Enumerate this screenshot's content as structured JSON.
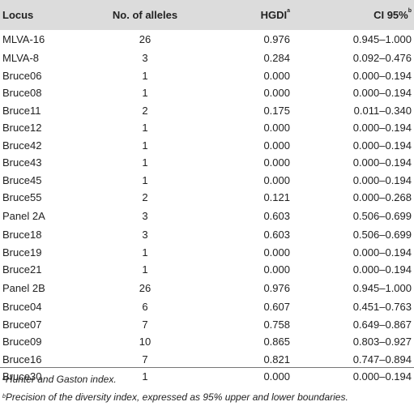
{
  "table": {
    "headers": {
      "locus": "Locus",
      "alleles": "No. of alleles",
      "hgdi": "HGDI",
      "hgdi_sup": "a",
      "ci": "CI 95%",
      "ci_sup": "b"
    },
    "rows": [
      {
        "locus": "MLVA-16",
        "alleles": "26",
        "hgdi": "0.976",
        "ci": "0.945–1.000"
      },
      {
        "locus": "MLVA-8",
        "alleles": "3",
        "hgdi": "0.284",
        "ci": "0.092–0.476"
      },
      {
        "locus": "Bruce06",
        "alleles": "1",
        "hgdi": "0.000",
        "ci": "0.000–0.194"
      },
      {
        "locus": "Bruce08",
        "alleles": "1",
        "hgdi": "0.000",
        "ci": "0.000–0.194"
      },
      {
        "locus": "Bruce11",
        "alleles": "2",
        "hgdi": "0.175",
        "ci": "0.011–0.340"
      },
      {
        "locus": "Bruce12",
        "alleles": "1",
        "hgdi": "0.000",
        "ci": "0.000–0.194"
      },
      {
        "locus": "Bruce42",
        "alleles": "1",
        "hgdi": "0.000",
        "ci": "0.000–0.194"
      },
      {
        "locus": "Bruce43",
        "alleles": "1",
        "hgdi": "0.000",
        "ci": "0.000–0.194"
      },
      {
        "locus": "Bruce45",
        "alleles": "1",
        "hgdi": "0.000",
        "ci": "0.000–0.194"
      },
      {
        "locus": "Bruce55",
        "alleles": "2",
        "hgdi": "0.121",
        "ci": "0.000–0.268"
      },
      {
        "locus": "Panel 2A",
        "alleles": "3",
        "hgdi": "0.603",
        "ci": "0.506–0.699"
      },
      {
        "locus": "Bruce18",
        "alleles": "3",
        "hgdi": "0.603",
        "ci": "0.506–0.699"
      },
      {
        "locus": "Bruce19",
        "alleles": "1",
        "hgdi": "0.000",
        "ci": "0.000–0.194"
      },
      {
        "locus": "Bruce21",
        "alleles": "1",
        "hgdi": "0.000",
        "ci": "0.000–0.194"
      },
      {
        "locus": "Panel 2B",
        "alleles": "26",
        "hgdi": "0.976",
        "ci": "0.945–1.000"
      },
      {
        "locus": "Bruce04",
        "alleles": "6",
        "hgdi": "0.607",
        "ci": "0.451–0.763"
      },
      {
        "locus": "Bruce07",
        "alleles": "7",
        "hgdi": "0.758",
        "ci": "0.649–0.867"
      },
      {
        "locus": "Bruce09",
        "alleles": "10",
        "hgdi": "0.865",
        "ci": "0.803–0.927"
      },
      {
        "locus": "Bruce16",
        "alleles": "7",
        "hgdi": "0.821",
        "ci": "0.747–0.894"
      },
      {
        "locus": "Bruce30",
        "alleles": "1",
        "hgdi": "0.000",
        "ci": "0.000–0.194"
      }
    ]
  },
  "footnotes": {
    "a_mark": "a",
    "a_text": "Hunter and Gaston index.",
    "b_mark": "b",
    "b_text": "Precision of the diversity index, expressed as 95% upper and lower boundaries."
  }
}
